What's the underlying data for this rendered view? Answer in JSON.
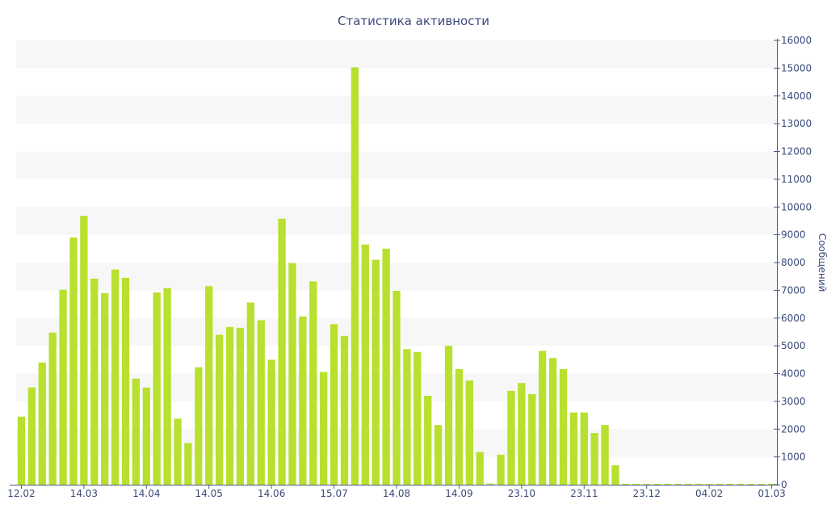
{
  "chart_data": {
    "type": "bar",
    "title": "Статистика активности",
    "ylabel": "Сообщений",
    "xlabel": "",
    "ylim": [
      0,
      16000
    ],
    "y_ticks": [
      0,
      1000,
      2000,
      3000,
      4000,
      5000,
      6000,
      7000,
      8000,
      9000,
      10000,
      11000,
      12000,
      13000,
      14000,
      15000,
      16000
    ],
    "y_axis_position": "right",
    "x_tick_labels": [
      {
        "label": "12.02",
        "index": 0
      },
      {
        "label": "14.03",
        "index": 6
      },
      {
        "label": "14.04",
        "index": 12
      },
      {
        "label": "14.05",
        "index": 18
      },
      {
        "label": "14.06",
        "index": 24
      },
      {
        "label": "15.07",
        "index": 30
      },
      {
        "label": "14.08",
        "index": 36
      },
      {
        "label": "14.09",
        "index": 42
      },
      {
        "label": "23.10",
        "index": 48
      },
      {
        "label": "23.11",
        "index": 54
      },
      {
        "label": "23.12",
        "index": 60
      },
      {
        "label": "04.02",
        "index": 66
      },
      {
        "label": "01.03",
        "index": 72
      }
    ],
    "grid": "horizontal alternating bands",
    "bar_color": "#b8e02e",
    "band_color": "#f7f7f7",
    "axis_color": "#4a5a8a",
    "values": [
      2450,
      3500,
      4400,
      5480,
      7020,
      8900,
      9680,
      7420,
      6900,
      7750,
      7450,
      3820,
      3500,
      6920,
      7080,
      2380,
      1500,
      4230,
      7150,
      5400,
      5680,
      5650,
      6560,
      5920,
      4500,
      9580,
      7980,
      6060,
      7320,
      4060,
      5780,
      5360,
      15030,
      8650,
      8100,
      8500,
      6980,
      4880,
      4780,
      3200,
      2150,
      5000,
      4160,
      3750,
      1180,
      40,
      1080,
      3380,
      3660,
      3260,
      4820,
      4560,
      4160,
      2600,
      2600,
      1860,
      2150,
      700,
      30,
      30,
      30,
      30,
      30,
      30,
      30,
      30,
      30,
      30,
      30,
      30,
      30,
      30,
      30
    ]
  }
}
